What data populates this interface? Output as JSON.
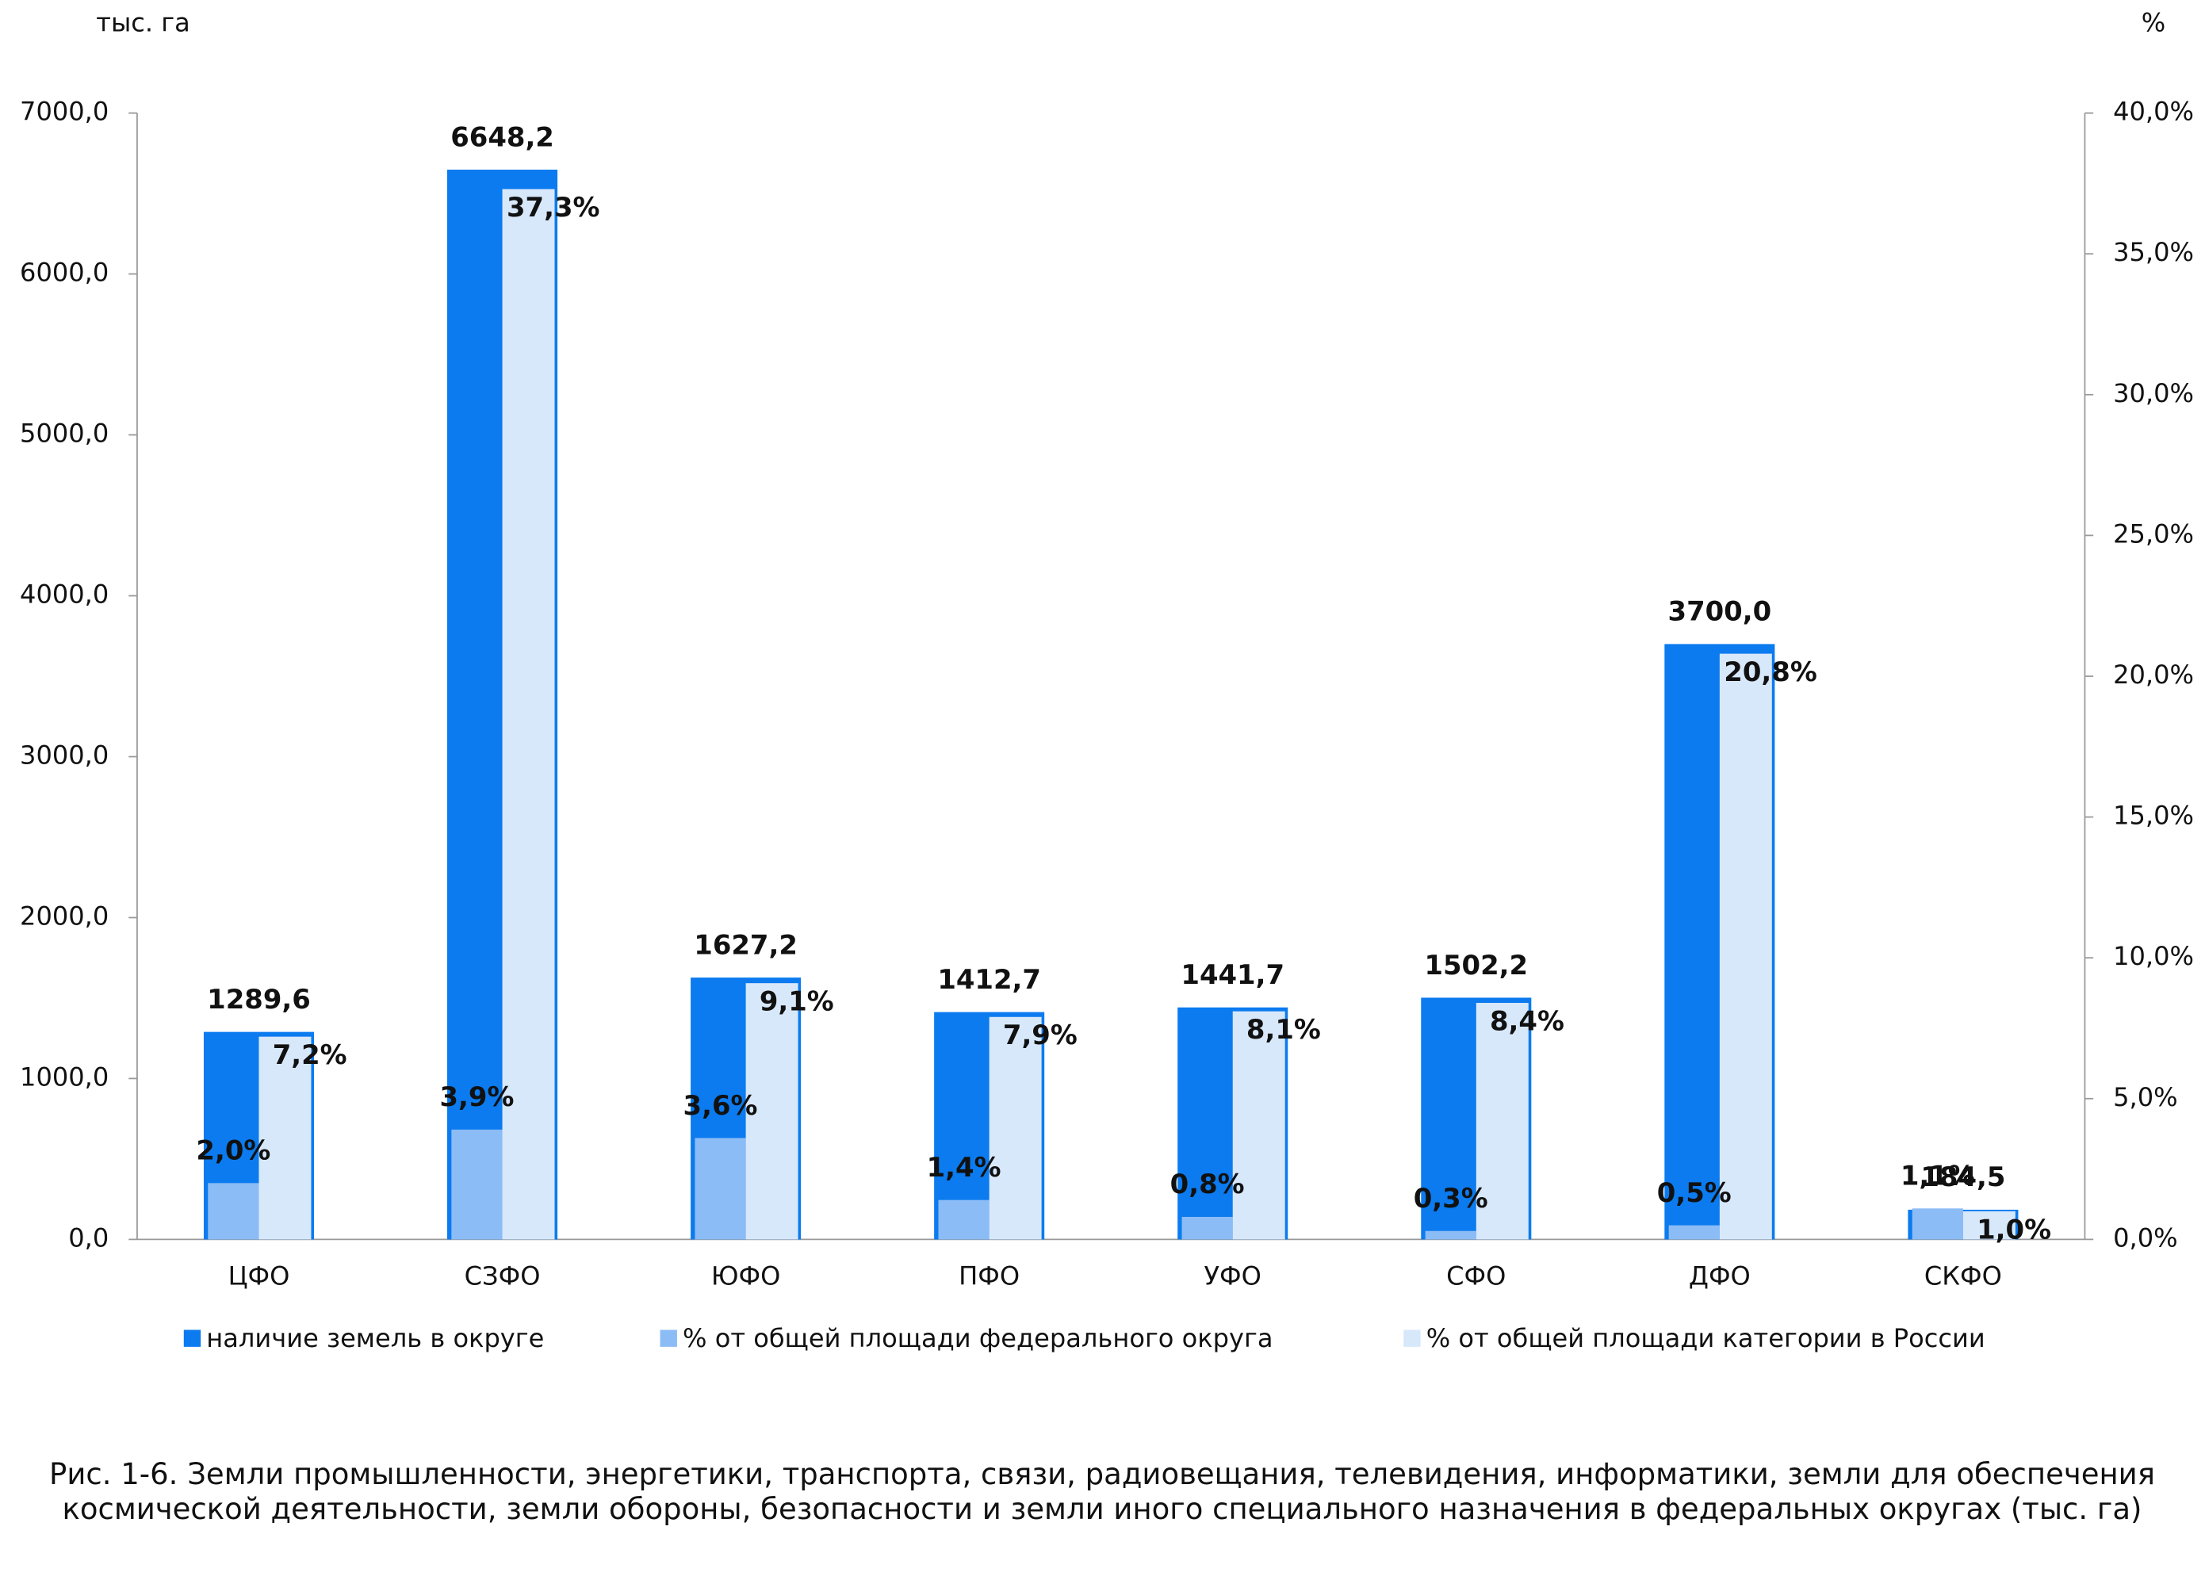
{
  "chart_data": {
    "type": "bar",
    "y_title": "тыс. га",
    "y2_title": "%",
    "caption": "Рис. 1-6. Земли промышленности, энергетики, транспорта, связи, радиовещания, телевидения, информатики, земли для обеспечения космической деятельности, земли обороны, безопасности и земли иного специального назначения в федеральных округах (тыс. га)",
    "categories": [
      "ЦФО",
      "СЗФО",
      "ЮФО",
      "ПФО",
      "УФО",
      "СФО",
      "ДФО",
      "СКФО"
    ],
    "series": [
      {
        "name": "наличие земель в округе",
        "color": "#0b7bef",
        "axis": "y",
        "values": [
          1289.6,
          6648.2,
          1627.2,
          1412.7,
          1441.7,
          1502.2,
          3700.0,
          184.5
        ],
        "value_labels": [
          "1289,6",
          "6648,2",
          "1627,2",
          "1412,7",
          "1441,7",
          "1502,2",
          "3700,0",
          "184,5"
        ]
      },
      {
        "name": "% от общей площади федерального округа",
        "color": "#8cbcf6",
        "axis": "y2",
        "values": [
          2.0,
          3.9,
          3.6,
          1.4,
          0.8,
          0.3,
          0.5,
          1.1
        ],
        "value_labels": [
          "2,0%",
          "3,9%",
          "3,6%",
          "1,4%",
          "0,8%",
          "0,3%",
          "0,5%",
          "1,1%"
        ]
      },
      {
        "name": "% от общей площади категории в России",
        "color": "#d8e8fb",
        "axis": "y2",
        "values": [
          7.2,
          37.3,
          9.1,
          7.9,
          8.1,
          8.4,
          20.8,
          1.0
        ],
        "value_labels": [
          "7,2%",
          "37,3%",
          "9,1%",
          "7,9%",
          "8,1%",
          "8,4%",
          "20,8%",
          "1,0%"
        ]
      }
    ],
    "ylim": [
      0,
      7000
    ],
    "yticks": [
      {
        "value": 0,
        "label": "0,0"
      },
      {
        "value": 1000,
        "label": "1000,0"
      },
      {
        "value": 2000,
        "label": "2000,0"
      },
      {
        "value": 3000,
        "label": "3000,0"
      },
      {
        "value": 4000,
        "label": "4000,0"
      },
      {
        "value": 5000,
        "label": "5000,0"
      },
      {
        "value": 6000,
        "label": "6000,0"
      },
      {
        "value": 7000,
        "label": "7000,0"
      }
    ],
    "y2lim": [
      0,
      40
    ],
    "y2ticks": [
      {
        "value": 0,
        "label": "0,0%"
      },
      {
        "value": 5,
        "label": "5,0%"
      },
      {
        "value": 10,
        "label": "10,0%"
      },
      {
        "value": 15,
        "label": "15,0%"
      },
      {
        "value": 20,
        "label": "20,0%"
      },
      {
        "value": 25,
        "label": "25,0%"
      },
      {
        "value": 30,
        "label": "30,0%"
      },
      {
        "value": 35,
        "label": "35,0%"
      },
      {
        "value": 40,
        "label": "40,0%"
      }
    ],
    "legend": "bottom",
    "grid": false
  }
}
